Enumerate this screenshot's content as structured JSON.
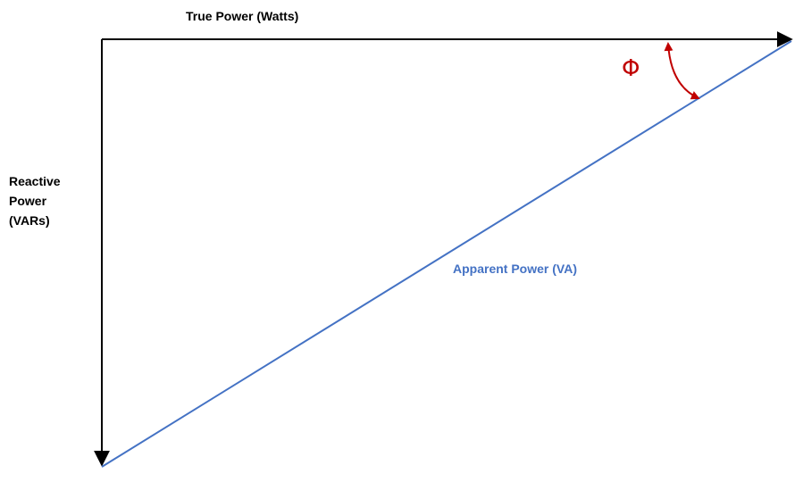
{
  "diagram": {
    "true_power_label": "True Power (Watts)",
    "reactive_power_label": [
      "Reactive",
      "Power",
      "(VARs)"
    ],
    "apparent_power_label": "Apparent Power (VA)",
    "angle_symbol": "Φ"
  },
  "colors": {
    "axis": "#000000",
    "apparent_power": "#4472c4",
    "angle_arc": "#c00000",
    "background": "#ffffff"
  }
}
